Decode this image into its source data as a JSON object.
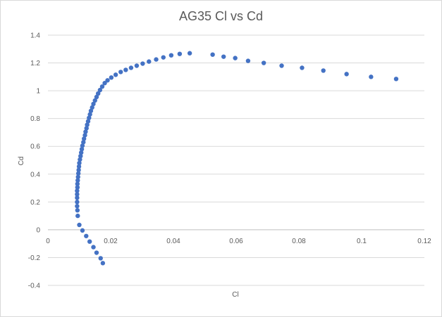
{
  "chart_data": {
    "type": "scatter",
    "title": "AG35 Cl vs Cd",
    "xlabel": "Cl",
    "ylabel": "Cd",
    "xlim": [
      0,
      0.12
    ],
    "ylim": [
      -0.4,
      1.4
    ],
    "x_ticks": [
      0,
      0.02,
      0.04,
      0.06,
      0.08,
      0.1,
      0.12
    ],
    "x_tick_labels": [
      "0",
      "0.02",
      "0.04",
      "0.06",
      "0.08",
      "0.1",
      "0.12"
    ],
    "y_ticks": [
      -0.4,
      -0.2,
      0,
      0.2,
      0.4,
      0.6,
      0.8,
      1,
      1.2,
      1.4
    ],
    "y_tick_labels": [
      "-0.4",
      "-0.2",
      "0",
      "0.2",
      "0.4",
      "0.6",
      "0.8",
      "1",
      "1.2",
      "1.4"
    ],
    "grid": "horizontal",
    "legend": "none",
    "marker_color": "#4472c4",
    "points": [
      [
        0.0175,
        -0.24
      ],
      [
        0.0168,
        -0.205
      ],
      [
        0.0155,
        -0.165
      ],
      [
        0.0145,
        -0.125
      ],
      [
        0.0133,
        -0.085
      ],
      [
        0.0122,
        -0.045
      ],
      [
        0.011,
        -0.005
      ],
      [
        0.01,
        0.035
      ],
      [
        0.0095,
        0.1
      ],
      [
        0.0094,
        0.14
      ],
      [
        0.0093,
        0.17
      ],
      [
        0.0093,
        0.2
      ],
      [
        0.0093,
        0.23
      ],
      [
        0.0093,
        0.255
      ],
      [
        0.0093,
        0.28
      ],
      [
        0.0094,
        0.305
      ],
      [
        0.0094,
        0.33
      ],
      [
        0.0095,
        0.355
      ],
      [
        0.0096,
        0.38
      ],
      [
        0.0097,
        0.405
      ],
      [
        0.0098,
        0.43
      ],
      [
        0.0099,
        0.455
      ],
      [
        0.01,
        0.48
      ],
      [
        0.0102,
        0.505
      ],
      [
        0.0104,
        0.53
      ],
      [
        0.0106,
        0.555
      ],
      [
        0.0108,
        0.58
      ],
      [
        0.011,
        0.605
      ],
      [
        0.0113,
        0.63
      ],
      [
        0.0115,
        0.655
      ],
      [
        0.0118,
        0.68
      ],
      [
        0.012,
        0.705
      ],
      [
        0.0123,
        0.73
      ],
      [
        0.0125,
        0.755
      ],
      [
        0.0128,
        0.78
      ],
      [
        0.0131,
        0.805
      ],
      [
        0.0134,
        0.83
      ],
      [
        0.0137,
        0.855
      ],
      [
        0.0141,
        0.88
      ],
      [
        0.0145,
        0.905
      ],
      [
        0.015,
        0.93
      ],
      [
        0.0155,
        0.955
      ],
      [
        0.016,
        0.98
      ],
      [
        0.0166,
        1.005
      ],
      [
        0.0173,
        1.03
      ],
      [
        0.0181,
        1.055
      ],
      [
        0.019,
        1.075
      ],
      [
        0.0202,
        1.095
      ],
      [
        0.0216,
        1.115
      ],
      [
        0.0232,
        1.135
      ],
      [
        0.0248,
        1.15
      ],
      [
        0.0265,
        1.165
      ],
      [
        0.0283,
        1.18
      ],
      [
        0.0302,
        1.195
      ],
      [
        0.0322,
        1.21
      ],
      [
        0.0345,
        1.225
      ],
      [
        0.0368,
        1.24
      ],
      [
        0.0393,
        1.255
      ],
      [
        0.042,
        1.265
      ],
      [
        0.0452,
        1.27
      ],
      [
        0.0525,
        1.26
      ],
      [
        0.056,
        1.245
      ],
      [
        0.0597,
        1.235
      ],
      [
        0.0638,
        1.215
      ],
      [
        0.0688,
        1.2
      ],
      [
        0.0745,
        1.18
      ],
      [
        0.081,
        1.165
      ],
      [
        0.0878,
        1.145
      ],
      [
        0.0952,
        1.12
      ],
      [
        0.103,
        1.1
      ],
      [
        0.111,
        1.085
      ]
    ]
  }
}
